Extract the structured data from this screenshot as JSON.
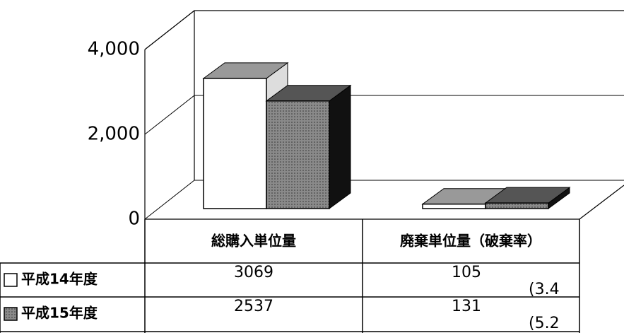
{
  "chart_data": {
    "type": "bar3d",
    "categories": [
      "総購入単位量",
      "廃棄単位量（破棄率）"
    ],
    "series": [
      {
        "name": "平成14年度",
        "color": "#ffffff",
        "values": [
          3069,
          105
        ]
      },
      {
        "name": "平成15年度",
        "color": "#8a8a8a",
        "values": [
          2537,
          131
        ]
      }
    ],
    "annotations": [
      "(3.4",
      "(5.2"
    ],
    "ylim": [
      0,
      4000
    ],
    "yticks": [
      0,
      {
        "value": 2000,
        "label": "2,000"
      },
      {
        "value": 4000,
        "label": "4,000"
      }
    ],
    "grid": true
  }
}
